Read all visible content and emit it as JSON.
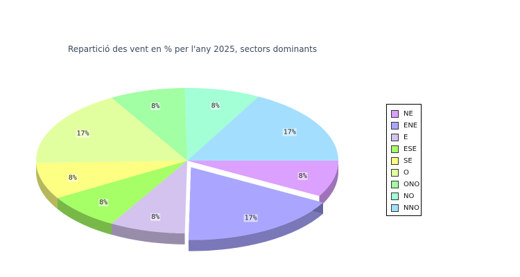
{
  "title": "Repartició des vent en % per l'any 2025, sectors dominants",
  "chart_data": {
    "type": "pie",
    "title": "Repartició des vent en % per l'any 2025, sectors dominants",
    "exploded": "ENE",
    "slices": [
      {
        "label": "NE",
        "value": 8,
        "display": "8%",
        "color": "#dca0ff"
      },
      {
        "label": "ENE",
        "value": 17,
        "display": "17%",
        "color": "#aaa6ff"
      },
      {
        "label": "E",
        "value": 8,
        "display": "8%",
        "color": "#d3c3ee"
      },
      {
        "label": "ESE",
        "value": 8,
        "display": "8%",
        "color": "#a6ff66"
      },
      {
        "label": "SE",
        "value": 8,
        "display": "8%",
        "color": "#fdff82"
      },
      {
        "label": "O",
        "value": 17,
        "display": "17%",
        "color": "#e2ff9f"
      },
      {
        "label": "ONO",
        "value": 8,
        "display": "8%",
        "color": "#a2ffa4"
      },
      {
        "label": "NO",
        "value": 8,
        "display": "8%",
        "color": "#a2ffd6"
      },
      {
        "label": "NNO",
        "value": 17,
        "display": "17%",
        "color": "#a4deff"
      }
    ],
    "legend": {
      "position": "right"
    }
  }
}
